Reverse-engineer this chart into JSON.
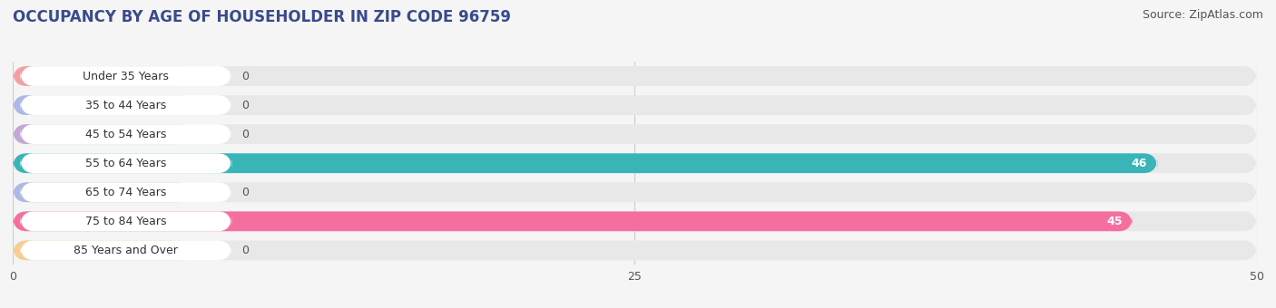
{
  "title": "OCCUPANCY BY AGE OF HOUSEHOLDER IN ZIP CODE 96759",
  "source": "Source: ZipAtlas.com",
  "categories": [
    "Under 35 Years",
    "35 to 44 Years",
    "45 to 54 Years",
    "55 to 64 Years",
    "65 to 74 Years",
    "75 to 84 Years",
    "85 Years and Over"
  ],
  "values": [
    0,
    0,
    0,
    46,
    0,
    45,
    0
  ],
  "bar_colors": [
    "#f2a0a6",
    "#adb8e6",
    "#c4a8d4",
    "#39b5b8",
    "#adb8e6",
    "#f46fa0",
    "#f5ce90"
  ],
  "xlim": [
    0,
    50
  ],
  "xticks": [
    0,
    25,
    50
  ],
  "background_color": "#f5f5f5",
  "bar_bg_color": "#e8e8e8",
  "bar_white_color": "#ffffff",
  "title_fontsize": 12,
  "source_fontsize": 9,
  "tick_fontsize": 9,
  "label_fontsize": 9
}
